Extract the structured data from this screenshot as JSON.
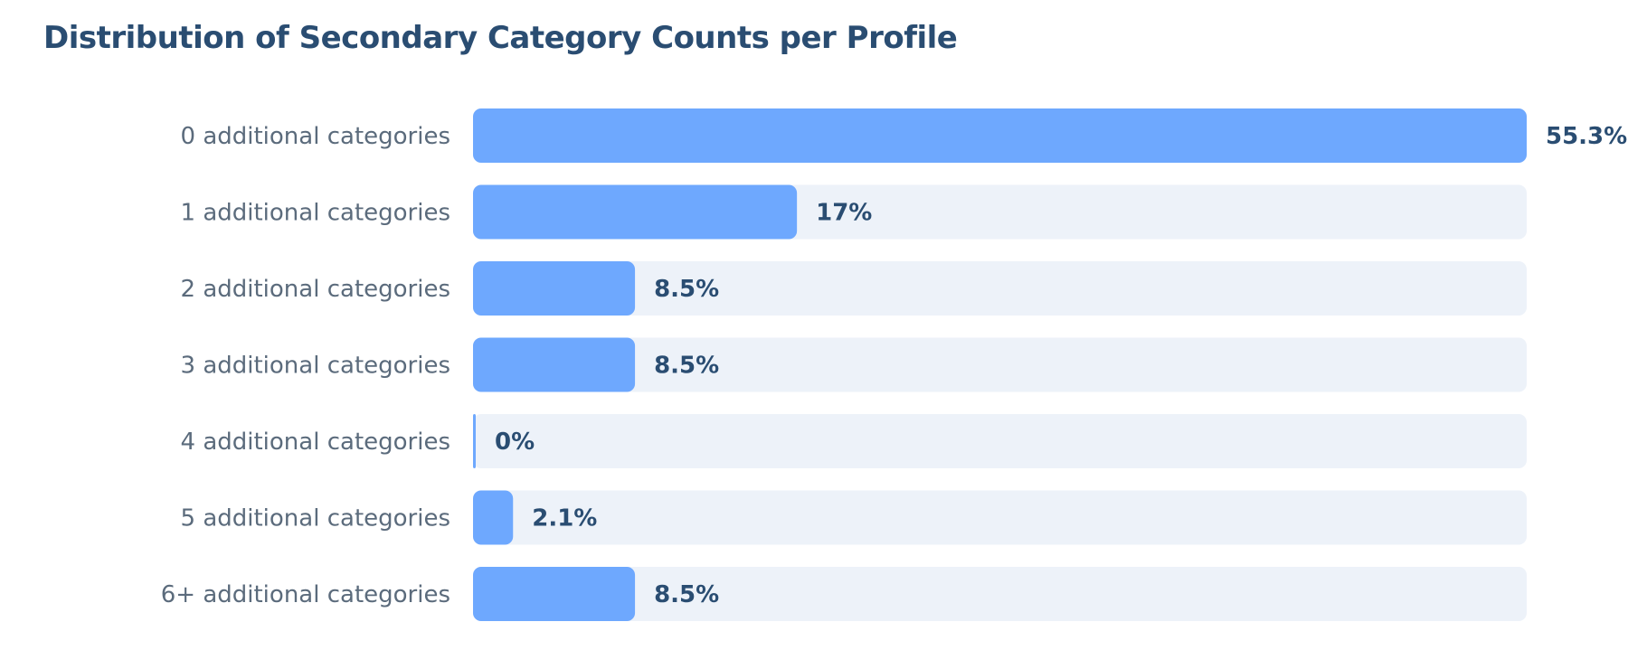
{
  "chart_data": {
    "type": "bar",
    "orientation": "horizontal",
    "title": "Distribution of Secondary Category Counts per Profile",
    "xlabel": "",
    "ylabel": "",
    "categories": [
      "0 additional categories",
      "1 additional categories",
      "2 additional categories",
      "3 additional categories",
      "4 additional categories",
      "5 additional categories",
      "6+ additional categories"
    ],
    "values": [
      55.3,
      17,
      8.5,
      8.5,
      0,
      2.1,
      8.5
    ],
    "value_labels": [
      "55.3%",
      "17%",
      "8.5%",
      "8.5%",
      "0%",
      "2.1%",
      "8.5%"
    ],
    "xlim": [
      0,
      55.3
    ],
    "grid": false,
    "legend": "none",
    "colors": {
      "bar": "#6ea8fe",
      "track": "#edf2f9",
      "title": "#2a4d72",
      "label": "#5b6b7c",
      "value": "#2a4d72"
    }
  }
}
